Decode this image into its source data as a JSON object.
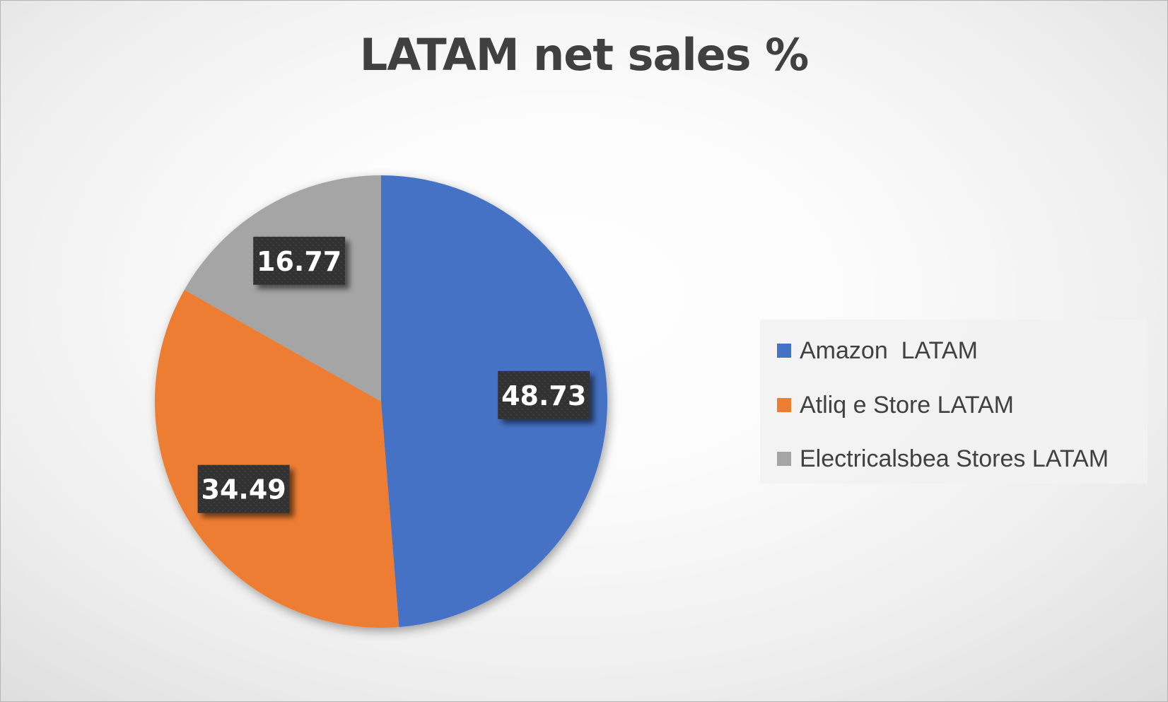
{
  "chart_data": {
    "type": "pie",
    "title": "LATAM net sales %",
    "categories": [
      "Amazon  LATAM",
      "Atliq e Store LATAM",
      "Electricalsbea Stores LATAM"
    ],
    "values": [
      48.73,
      34.49,
      16.77
    ],
    "data_labels": [
      "48.73",
      "34.49",
      "16.77"
    ],
    "colors": [
      "#4472C4",
      "#ED7D31",
      "#A5A5A5"
    ],
    "start_angle_deg": 0,
    "direction": "clockwise",
    "legend_position": "right"
  }
}
